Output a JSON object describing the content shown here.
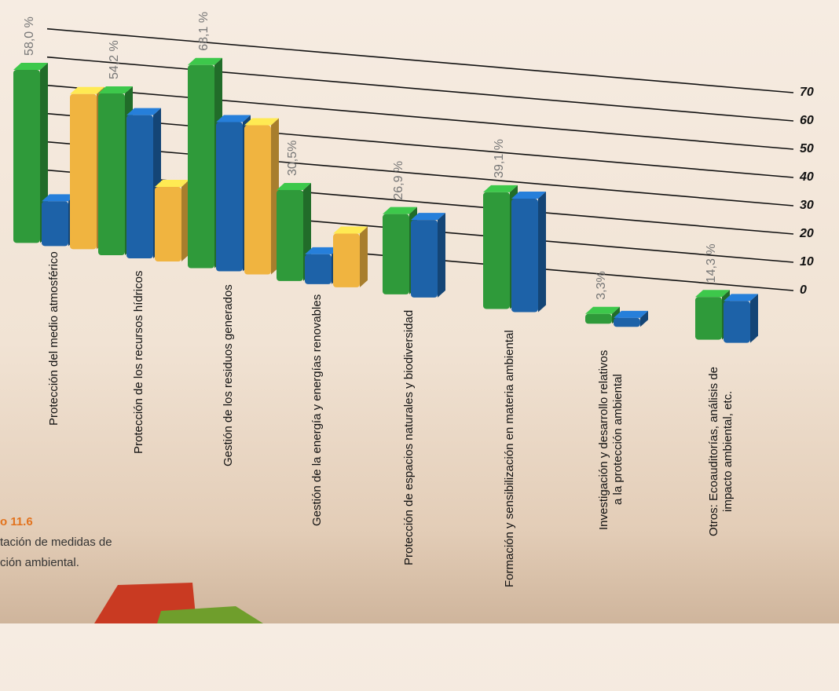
{
  "chart_data": {
    "type": "bar3d",
    "categories": [
      "Protección del medio atmosférico",
      "Protección de los recursos hídricos",
      "Gestión de los residuos generados",
      "Gestión de la energía y energías renovables",
      "Protección de espacios naturales y biodiversidad",
      "Formación y sensibilización en materia ambiental",
      "Investigación y desarrollo relativos a la protección ambiental",
      "Otros: Ecoauditorías, análisis de impacto ambiental, etc."
    ],
    "series": [
      {
        "color": "#2f9a3a",
        "values": [
          58.0,
          54.2,
          68.1,
          30.5,
          26.9,
          39.1,
          3.3,
          14.3
        ],
        "value_labels": [
          "58,0 %",
          "54,2 %",
          "68,1 %",
          "30,5%",
          "26,9 %",
          "39,1 %",
          "3,3%",
          "14,3 %"
        ]
      },
      {
        "color": "#1d62a8",
        "values": [
          15,
          48,
          50,
          10,
          26,
          38,
          3,
          14
        ]
      },
      {
        "color": "#f0b440",
        "values": [
          52,
          25,
          50,
          18,
          null,
          null,
          null,
          null
        ]
      }
    ],
    "ylim": [
      0,
      70
    ],
    "yticks": [
      0,
      10,
      20,
      30,
      40,
      50,
      60,
      70
    ],
    "grid": true,
    "caption": [
      "o 11.6",
      "tación de medidas de",
      "ción ambiental."
    ]
  }
}
